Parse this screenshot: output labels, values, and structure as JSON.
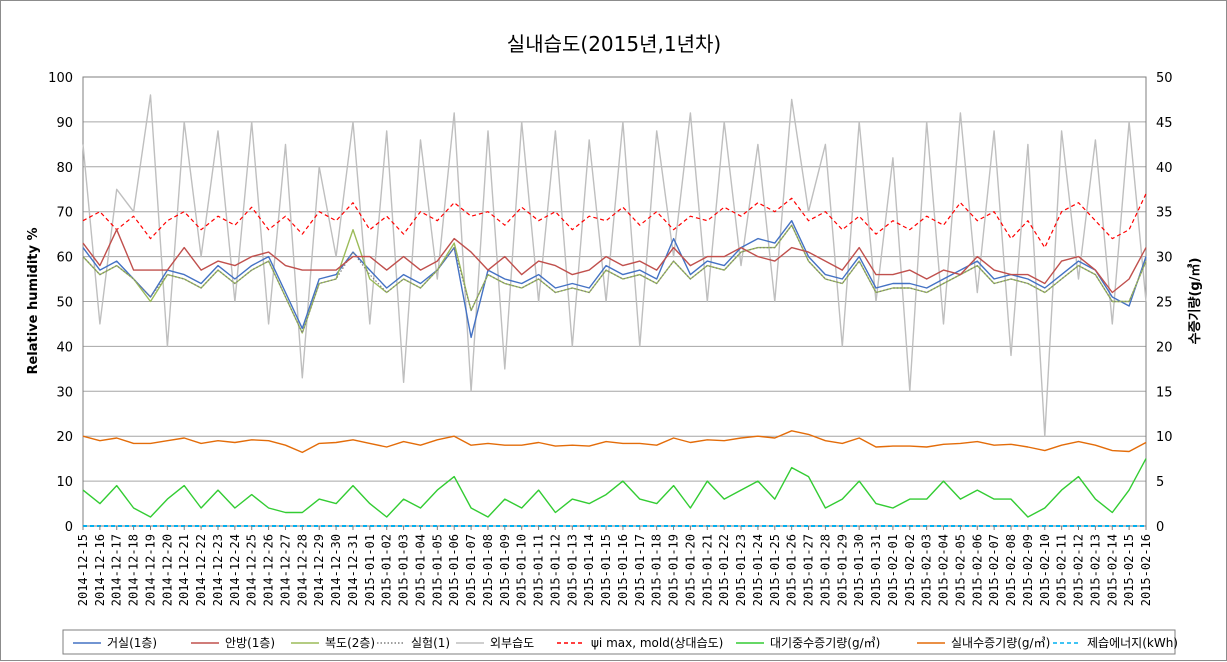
{
  "chart_data": {
    "type": "line",
    "title": "실내습도(2015년,1년차)",
    "ylabel": "Relative humidity %",
    "y2label": "수증기량(g/㎥)",
    "ylim": [
      0,
      100
    ],
    "y2lim": [
      0,
      50
    ],
    "yticks": [
      "0",
      "10",
      "20",
      "30",
      "40",
      "50",
      "60",
      "70",
      "80",
      "90",
      "100"
    ],
    "y2ticks": [
      "0",
      "5",
      "10",
      "15",
      "20",
      "25",
      "30",
      "35",
      "40",
      "45",
      "50"
    ],
    "grid": true,
    "legend_position": "bottom",
    "categories": [
      "2014-12-15",
      "2014-12-16",
      "2014-12-17",
      "2014-12-18",
      "2014-12-19",
      "2014-12-20",
      "2014-12-21",
      "2014-12-22",
      "2014-12-23",
      "2014-12-24",
      "2014-12-25",
      "2014-12-26",
      "2014-12-27",
      "2014-12-28",
      "2014-12-29",
      "2014-12-30",
      "2014-12-31",
      "2015-01-01",
      "2015-01-02",
      "2015-01-03",
      "2015-01-04",
      "2015-01-05",
      "2015-01-06",
      "2015-01-07",
      "2015-01-08",
      "2015-01-09",
      "2015-01-10",
      "2015-01-11",
      "2015-01-12",
      "2015-01-13",
      "2015-01-14",
      "2015-01-15",
      "2015-01-16",
      "2015-01-17",
      "2015-01-18",
      "2015-01-19",
      "2015-01-20",
      "2015-01-21",
      "2015-01-22",
      "2015-01-23",
      "2015-01-24",
      "2015-01-25",
      "2015-01-26",
      "2015-01-27",
      "2015-01-28",
      "2015-01-29",
      "2015-01-30",
      "2015-01-31",
      "2015-02-01",
      "2015-02-02",
      "2015-02-03",
      "2015-02-04",
      "2015-02-05",
      "2015-02-06",
      "2015-02-07",
      "2015-02-08",
      "2015-02-09",
      "2015-02-10",
      "2015-02-11",
      "2015-02-12",
      "2015-02-13",
      "2015-02-14",
      "2015-02-15",
      "2015-02-16"
    ],
    "series": [
      {
        "name": "거실(1층)",
        "axis": "left",
        "color": "#4472c4",
        "style": "solid",
        "values": [
          62,
          57,
          59,
          55,
          51,
          57,
          56,
          54,
          58,
          55,
          58,
          60,
          52,
          44,
          55,
          56,
          61,
          57,
          53,
          56,
          54,
          57,
          62,
          42,
          57,
          55,
          54,
          56,
          53,
          54,
          53,
          58,
          56,
          57,
          55,
          64,
          56,
          59,
          58,
          62,
          64,
          63,
          68,
          60,
          56,
          55,
          60,
          53,
          54,
          54,
          53,
          55,
          57,
          59,
          55,
          56,
          55,
          53,
          56,
          59,
          57,
          51,
          49,
          60
        ]
      },
      {
        "name": "안방(1층)",
        "axis": "left",
        "color": "#c0504d",
        "style": "solid",
        "values": [
          63,
          58,
          66,
          57,
          57,
          57,
          62,
          57,
          59,
          58,
          60,
          61,
          58,
          57,
          57,
          57,
          60,
          60,
          57,
          60,
          57,
          59,
          64,
          61,
          57,
          60,
          56,
          59,
          58,
          56,
          57,
          60,
          58,
          59,
          57,
          62,
          58,
          60,
          60,
          62,
          60,
          59,
          62,
          61,
          59,
          57,
          62,
          56,
          56,
          57,
          55,
          57,
          56,
          60,
          57,
          56,
          56,
          54,
          59,
          60,
          57,
          52,
          55,
          62
        ]
      },
      {
        "name": "복도(2층)",
        "axis": "left",
        "color": "#9bbb59",
        "style": "solid",
        "values": [
          60,
          56,
          58,
          55,
          50,
          56,
          55,
          53,
          57,
          54,
          57,
          59,
          51,
          43,
          54,
          55,
          66,
          55,
          52,
          55,
          53,
          57,
          63,
          48,
          56,
          54,
          53,
          55,
          52,
          53,
          52,
          57,
          55,
          56,
          54,
          59,
          55,
          58,
          57,
          61,
          62,
          62,
          67,
          59,
          55,
          54,
          59,
          52,
          53,
          53,
          52,
          54,
          56,
          58,
          54,
          55,
          54,
          52,
          55,
          58,
          56,
          50,
          50,
          59
        ]
      },
      {
        "name": "실험(1)",
        "axis": "left",
        "color": "#7f7f7f",
        "style": "dotted",
        "values": [
          60,
          56,
          58,
          55,
          51,
          56,
          55,
          53,
          57,
          54,
          57,
          59,
          51,
          43,
          54,
          55,
          61,
          56,
          52,
          55,
          53,
          57,
          62,
          48,
          56,
          54,
          53,
          55,
          52,
          53,
          52,
          57,
          55,
          56,
          54,
          59,
          55,
          58,
          57,
          61,
          62,
          62,
          67,
          59,
          55,
          54,
          59,
          52,
          53,
          53,
          52,
          54,
          56,
          58,
          54,
          55,
          54,
          52,
          55,
          58,
          56,
          50,
          50,
          59
        ]
      },
      {
        "name": "외부습도",
        "axis": "left",
        "color": "#bfbfbf",
        "style": "solid",
        "values": [
          85,
          45,
          75,
          70,
          96,
          40,
          90,
          60,
          88,
          50,
          90,
          45,
          85,
          33,
          80,
          60,
          90,
          45,
          88,
          32,
          86,
          55,
          92,
          30,
          88,
          35,
          90,
          50,
          88,
          40,
          86,
          50,
          90,
          40,
          88,
          60,
          92,
          50,
          90,
          58,
          85,
          50,
          95,
          70,
          85,
          40,
          90,
          50,
          82,
          30,
          90,
          45,
          92,
          52,
          88,
          38,
          85,
          20,
          88,
          55,
          86,
          45,
          90,
          50
        ]
      },
      {
        "name": "ψi max, mold(상대습도)",
        "axis": "left",
        "color": "#ff0000",
        "style": "dashed",
        "values": [
          68,
          70,
          66,
          69,
          64,
          68,
          70,
          66,
          69,
          67,
          71,
          66,
          69,
          65,
          70,
          68,
          72,
          66,
          69,
          65,
          70,
          68,
          72,
          69,
          70,
          67,
          71,
          68,
          70,
          66,
          69,
          68,
          71,
          67,
          70,
          66,
          69,
          68,
          71,
          69,
          72,
          70,
          73,
          68,
          70,
          66,
          69,
          65,
          68,
          66,
          69,
          67,
          72,
          68,
          70,
          64,
          68,
          62,
          70,
          72,
          68,
          64,
          66,
          74
        ]
      },
      {
        "name": "대기중수증기량(g/㎥)",
        "axis": "right",
        "color": "#33cc33",
        "style": "solid",
        "values": [
          4,
          2.5,
          4.5,
          2,
          1,
          3,
          4.5,
          2,
          4,
          2,
          3.5,
          2,
          1.5,
          1.5,
          3,
          2.5,
          4.5,
          2.5,
          1,
          3,
          2,
          4,
          5.5,
          2,
          1,
          3,
          2,
          4,
          1.5,
          3,
          2.5,
          3.5,
          5,
          3,
          2.5,
          4.5,
          2,
          5,
          3,
          4,
          5,
          3,
          6.5,
          5.5,
          2,
          3,
          5,
          2.5,
          2,
          3,
          3,
          5,
          3,
          4,
          3,
          3,
          1,
          2,
          4,
          5.5,
          3,
          1.5,
          4,
          7.5
        ]
      },
      {
        "name": "실내수증기량(g/㎥)",
        "axis": "right",
        "color": "#e36c09",
        "style": "solid",
        "values": [
          10,
          9.5,
          9.8,
          9.2,
          9.2,
          9.5,
          9.8,
          9.2,
          9.5,
          9.3,
          9.6,
          9.5,
          9.0,
          8.2,
          9.2,
          9.3,
          9.6,
          9.2,
          8.8,
          9.4,
          9.0,
          9.6,
          10.0,
          9.0,
          9.2,
          9.0,
          9.0,
          9.3,
          8.9,
          9.0,
          8.9,
          9.4,
          9.2,
          9.2,
          9.0,
          9.8,
          9.3,
          9.6,
          9.5,
          9.8,
          10.0,
          9.8,
          10.6,
          10.2,
          9.5,
          9.2,
          9.8,
          8.8,
          8.9,
          8.9,
          8.8,
          9.1,
          9.2,
          9.4,
          9.0,
          9.1,
          8.8,
          8.4,
          9.0,
          9.4,
          9.0,
          8.4,
          8.3,
          9.3
        ]
      },
      {
        "name": "제습에너지(kWh)",
        "axis": "right",
        "color": "#00b0f0",
        "style": "dashed",
        "values": [
          0,
          0,
          0,
          0,
          0,
          0,
          0,
          0,
          0,
          0,
          0,
          0,
          0,
          0,
          0,
          0,
          0,
          0,
          0,
          0,
          0,
          0,
          0,
          0,
          0,
          0,
          0,
          0,
          0,
          0,
          0,
          0,
          0,
          0,
          0,
          0,
          0,
          0,
          0,
          0,
          0,
          0,
          0,
          0,
          0,
          0,
          0,
          0,
          0,
          0,
          0,
          0,
          0,
          0,
          0,
          0,
          0,
          0,
          0,
          0,
          0,
          0,
          0,
          0
        ]
      }
    ]
  }
}
